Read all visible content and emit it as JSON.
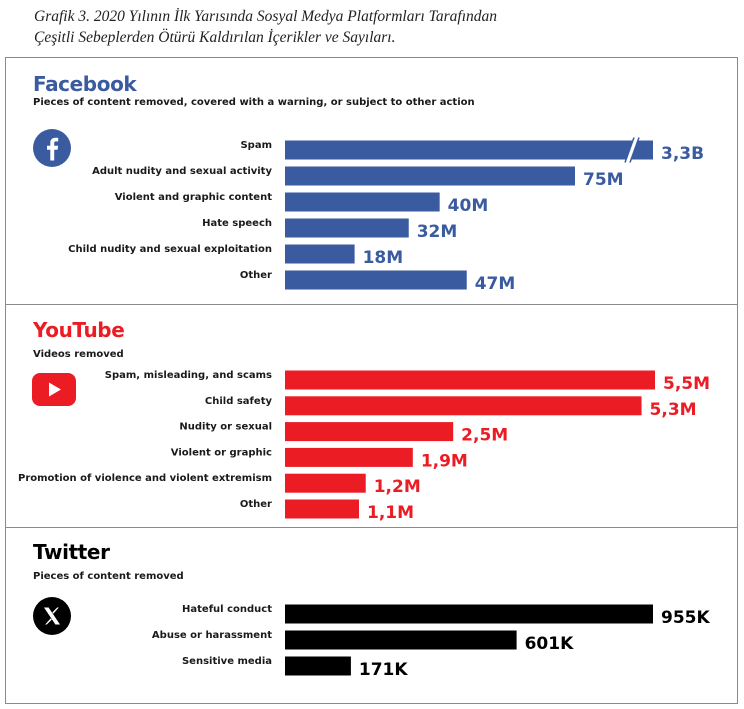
{
  "caption": {
    "line1": "Grafik 3. 2020 Yılının İlk Yarısında Sosyal Medya Platformları Tarafından",
    "line2": "Çeşitli Sebeplerden Ötürü Kaldırılan İçerikler ve Sayıları."
  },
  "chart_data": [
    {
      "type": "bar",
      "orientation": "horizontal",
      "title": "Facebook",
      "subtitle": "Pieces of content removed, covered with a warning, or subject to other action",
      "color": "#3b5ba0",
      "axis_break": "Spam",
      "categories": [
        "Spam",
        "Adult nudity and sexual activity",
        "Violent and graphic content",
        "Hate speech",
        "Child nudity and sexual exploitation",
        "Other"
      ],
      "values": [
        3300000000,
        75000000,
        40000000,
        32000000,
        18000000,
        47000000
      ],
      "value_labels": [
        "3,3B",
        "75M",
        "40M",
        "32M",
        "18M",
        "47M"
      ],
      "grid": false,
      "legend": false
    },
    {
      "type": "bar",
      "orientation": "horizontal",
      "title": "YouTube",
      "subtitle": "Videos removed",
      "color": "#ec1c24",
      "categories": [
        "Spam, misleading, and scams",
        "Child safety",
        "Nudity or sexual",
        "Violent or graphic",
        "Promotion of violence and violent extremism",
        "Other"
      ],
      "values": [
        5500000,
        5300000,
        2500000,
        1900000,
        1200000,
        1100000
      ],
      "value_labels": [
        "5,5M",
        "5,3M",
        "2,5M",
        "1,9M",
        "1,2M",
        "1,1M"
      ],
      "grid": false,
      "legend": false
    },
    {
      "type": "bar",
      "orientation": "horizontal",
      "title": "Twitter",
      "subtitle": "Pieces of content removed",
      "color": "#000000",
      "categories": [
        "Hateful conduct",
        "Abuse or harassment",
        "Sensitive media"
      ],
      "values": [
        955000,
        601000,
        171000
      ],
      "value_labels": [
        "955K",
        "601K",
        "171K"
      ],
      "grid": false,
      "legend": false
    }
  ],
  "icons": {
    "facebook": "facebook-logo-icon",
    "youtube": "youtube-logo-icon",
    "twitter": "x-logo-icon"
  }
}
